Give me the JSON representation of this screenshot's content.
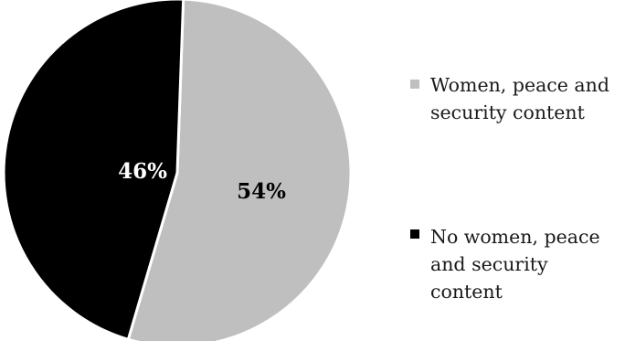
{
  "chart_data": {
    "type": "pie",
    "categories": [
      "Women, peace and security content",
      "No women, peace and security content"
    ],
    "values": [
      54,
      46
    ],
    "labels": [
      "54%",
      "46%"
    ],
    "colors": [
      "#bfbfbf",
      "#000000"
    ],
    "label_colors": [
      "#000000",
      "#ffffff"
    ],
    "legend_placement": "right",
    "legend": [
      {
        "lines": [
          "Women, peace and",
          "security content"
        ]
      },
      {
        "lines": [
          "No women, peace",
          "and security",
          "content"
        ]
      }
    ]
  }
}
